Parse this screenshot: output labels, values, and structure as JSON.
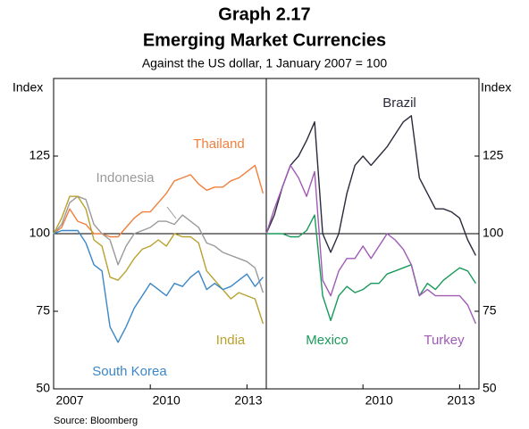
{
  "graph": "Graph 2.17",
  "title": "Emerging Market Currencies",
  "subtitle": "Against the US dollar, 1 January 2007 = 100",
  "source": "Source: Bloomberg",
  "chart_data": [
    {
      "type": "line",
      "y_label": "Index",
      "reference_line": 100,
      "x": [
        2007,
        2007.25,
        2007.5,
        2007.75,
        2008,
        2008.25,
        2008.5,
        2008.75,
        2009,
        2009.25,
        2009.5,
        2009.75,
        2010,
        2010.25,
        2010.5,
        2010.75,
        2011,
        2011.25,
        2011.5,
        2011.75,
        2012,
        2012.25,
        2012.5,
        2012.75,
        2013,
        2013.25,
        2013.5
      ],
      "xlim": [
        2007,
        2013.6
      ],
      "xticks": [
        2007,
        2010,
        2013
      ],
      "ylim": [
        50,
        150
      ],
      "yticks": [
        50,
        75,
        100,
        125
      ],
      "series": [
        {
          "name": "Thailand",
          "color": "#f07f3c",
          "values": [
            100,
            102,
            108,
            104,
            103,
            100,
            100,
            99,
            99,
            102,
            105,
            107,
            107,
            110,
            113,
            117,
            118,
            119,
            116,
            114,
            115,
            115,
            117,
            118,
            120,
            122,
            113
          ]
        },
        {
          "name": "Indonesia",
          "color": "#9a9a9a",
          "values": [
            100,
            103,
            110,
            112,
            111,
            103,
            100,
            98,
            90,
            96,
            100,
            101,
            102,
            104,
            104,
            103,
            106,
            104,
            102,
            97,
            96,
            94,
            93,
            92,
            91,
            89,
            81
          ]
        },
        {
          "name": "India",
          "color": "#b8a12e",
          "values": [
            100,
            105,
            112,
            112,
            108,
            98,
            96,
            86,
            85,
            88,
            92,
            95,
            96,
            98,
            96,
            100,
            99,
            99,
            97,
            88,
            85,
            82,
            79,
            81,
            80,
            79,
            71
          ]
        },
        {
          "name": "South Korea",
          "color": "#3a87c8",
          "values": [
            100,
            101,
            101,
            101,
            97,
            90,
            88,
            70,
            65,
            70,
            76,
            80,
            84,
            82,
            80,
            84,
            83,
            86,
            88,
            82,
            84,
            82,
            83,
            85,
            87,
            83,
            86
          ]
        }
      ]
    },
    {
      "type": "line",
      "y_label": "Index",
      "reference_line": 100,
      "x": [
        2007,
        2007.25,
        2007.5,
        2007.75,
        2008,
        2008.25,
        2008.5,
        2008.75,
        2009,
        2009.25,
        2009.5,
        2009.75,
        2010,
        2010.25,
        2010.5,
        2010.75,
        2011,
        2011.25,
        2011.5,
        2011.75,
        2012,
        2012.25,
        2012.5,
        2012.75,
        2013,
        2013.25,
        2013.5
      ],
      "xlim": [
        2007,
        2013.6
      ],
      "xticks": [
        2010,
        2013
      ],
      "ylim": [
        50,
        150
      ],
      "yticks": [
        50,
        75,
        100,
        125
      ],
      "series": [
        {
          "name": "Brazil",
          "color": "#2b2a3d",
          "values": [
            100,
            106,
            115,
            122,
            125,
            130,
            136,
            100,
            94,
            100,
            113,
            122,
            125,
            122,
            125,
            128,
            132,
            136,
            138,
            118,
            113,
            108,
            108,
            107,
            105,
            98,
            93
          ]
        },
        {
          "name": "Mexico",
          "color": "#1a9a5a",
          "values": [
            100,
            100,
            100,
            99,
            99,
            101,
            106,
            80,
            72,
            80,
            83,
            81,
            82,
            84,
            84,
            87,
            88,
            89,
            90,
            80,
            84,
            82,
            85,
            87,
            89,
            88,
            84
          ]
        },
        {
          "name": "Turkey",
          "color": "#a05ab5",
          "values": [
            100,
            108,
            115,
            122,
            118,
            112,
            120,
            85,
            80,
            88,
            92,
            92,
            96,
            92,
            96,
            100,
            98,
            95,
            90,
            80,
            82,
            80,
            80,
            80,
            80,
            77,
            71
          ]
        }
      ]
    }
  ]
}
